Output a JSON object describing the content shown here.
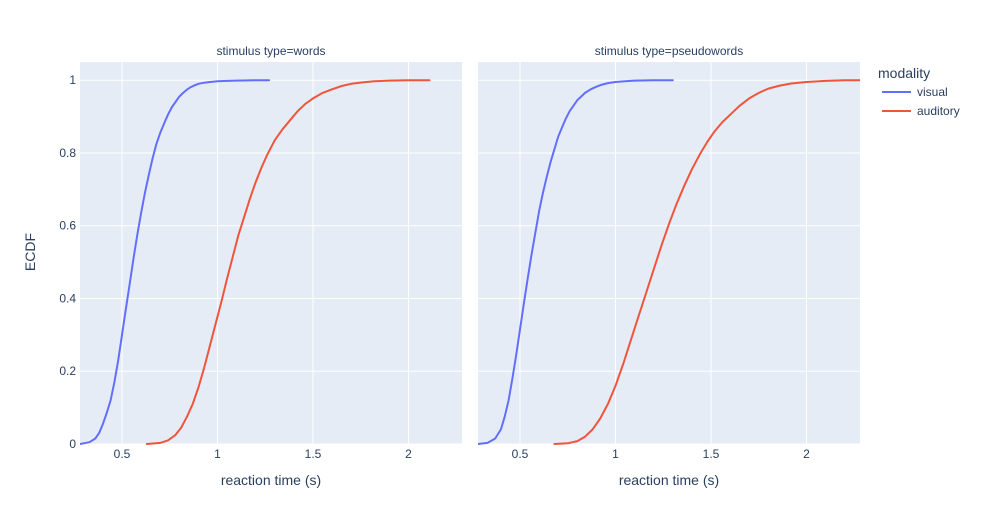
{
  "chart_data": {
    "type": "line",
    "ylabel": "ECDF",
    "ylim": [
      0,
      1.05
    ],
    "y_ticks": [
      0,
      0.2,
      0.4,
      0.6,
      0.8,
      1
    ],
    "y_tick_labels": [
      "0",
      "0.2",
      "0.4",
      "0.6",
      "0.8",
      "1"
    ],
    "grid": true,
    "legend": {
      "title": "modality",
      "placement": "right",
      "entries": [
        {
          "name": "visual",
          "color": "#636efa"
        },
        {
          "name": "auditory",
          "color": "#ef553b"
        }
      ]
    },
    "facets": [
      {
        "title": "stimulus type=words",
        "xlabel": "reaction time (s)",
        "xlim": [
          0.28,
          2.28
        ],
        "x_ticks": [
          0.5,
          1,
          1.5,
          2
        ],
        "x_tick_labels": [
          "0.5",
          "1",
          "1.5",
          "2"
        ],
        "series": [
          {
            "name": "visual",
            "color": "#636efa",
            "x": [
              0.28,
              0.33,
              0.36,
              0.38,
              0.4,
              0.42,
              0.44,
              0.46,
              0.48,
              0.5,
              0.52,
              0.54,
              0.56,
              0.58,
              0.6,
              0.62,
              0.64,
              0.66,
              0.68,
              0.7,
              0.72,
              0.74,
              0.76,
              0.78,
              0.8,
              0.82,
              0.84,
              0.86,
              0.88,
              0.9,
              0.93,
              0.96,
              1.0,
              1.05,
              1.1,
              1.2,
              1.27
            ],
            "y": [
              0,
              0.005,
              0.015,
              0.03,
              0.055,
              0.085,
              0.12,
              0.17,
              0.23,
              0.3,
              0.37,
              0.44,
              0.51,
              0.575,
              0.635,
              0.69,
              0.74,
              0.785,
              0.825,
              0.855,
              0.88,
              0.905,
              0.925,
              0.94,
              0.955,
              0.965,
              0.974,
              0.981,
              0.986,
              0.99,
              0.993,
              0.995,
              0.997,
              0.998,
              0.999,
              1.0,
              1.0
            ]
          },
          {
            "name": "auditory",
            "color": "#ef553b",
            "x": [
              0.63,
              0.7,
              0.74,
              0.78,
              0.81,
              0.84,
              0.87,
              0.9,
              0.93,
              0.96,
              0.99,
              1.02,
              1.05,
              1.08,
              1.11,
              1.14,
              1.17,
              1.2,
              1.23,
              1.26,
              1.3,
              1.34,
              1.38,
              1.42,
              1.46,
              1.5,
              1.55,
              1.6,
              1.65,
              1.7,
              1.76,
              1.82,
              1.9,
              2.0,
              2.11
            ],
            "y": [
              0,
              0.003,
              0.01,
              0.025,
              0.045,
              0.075,
              0.11,
              0.155,
              0.21,
              0.27,
              0.33,
              0.39,
              0.455,
              0.515,
              0.575,
              0.625,
              0.675,
              0.72,
              0.76,
              0.795,
              0.835,
              0.865,
              0.89,
              0.915,
              0.935,
              0.95,
              0.965,
              0.975,
              0.984,
              0.99,
              0.994,
              0.997,
              0.999,
              1.0,
              1.0
            ]
          }
        ]
      },
      {
        "title": "stimulus type=pseudowords",
        "xlabel": "reaction time (s)",
        "xlim": [
          0.28,
          2.28
        ],
        "x_ticks": [
          0.5,
          1,
          1.5,
          2
        ],
        "x_tick_labels": [
          "0.5",
          "1",
          "1.5",
          "2"
        ],
        "series": [
          {
            "name": "visual",
            "color": "#636efa",
            "x": [
              0.28,
              0.33,
              0.37,
              0.4,
              0.42,
              0.44,
              0.46,
              0.48,
              0.5,
              0.52,
              0.54,
              0.56,
              0.58,
              0.6,
              0.62,
              0.64,
              0.66,
              0.68,
              0.7,
              0.72,
              0.74,
              0.76,
              0.78,
              0.8,
              0.82,
              0.84,
              0.87,
              0.9,
              0.93,
              0.96,
              1.0,
              1.05,
              1.1,
              1.2,
              1.3
            ],
            "y": [
              0,
              0.003,
              0.015,
              0.04,
              0.075,
              0.12,
              0.18,
              0.245,
              0.315,
              0.385,
              0.455,
              0.52,
              0.58,
              0.64,
              0.69,
              0.735,
              0.775,
              0.81,
              0.845,
              0.87,
              0.895,
              0.915,
              0.93,
              0.945,
              0.955,
              0.965,
              0.975,
              0.982,
              0.988,
              0.992,
              0.995,
              0.997,
              0.999,
              1.0,
              1.0
            ]
          },
          {
            "name": "auditory",
            "color": "#ef553b",
            "x": [
              0.68,
              0.75,
              0.8,
              0.84,
              0.88,
              0.92,
              0.96,
              1.0,
              1.04,
              1.08,
              1.12,
              1.16,
              1.2,
              1.24,
              1.28,
              1.32,
              1.36,
              1.4,
              1.44,
              1.48,
              1.52,
              1.56,
              1.6,
              1.65,
              1.7,
              1.75,
              1.8,
              1.86,
              1.92,
              2.0,
              2.1,
              2.2,
              2.28
            ],
            "y": [
              0,
              0.002,
              0.008,
              0.02,
              0.04,
              0.07,
              0.11,
              0.16,
              0.22,
              0.285,
              0.35,
              0.415,
              0.48,
              0.545,
              0.605,
              0.66,
              0.71,
              0.755,
              0.795,
              0.83,
              0.86,
              0.885,
              0.905,
              0.93,
              0.95,
              0.965,
              0.977,
              0.985,
              0.991,
              0.995,
              0.998,
              1.0,
              1.0
            ]
          }
        ]
      }
    ]
  }
}
